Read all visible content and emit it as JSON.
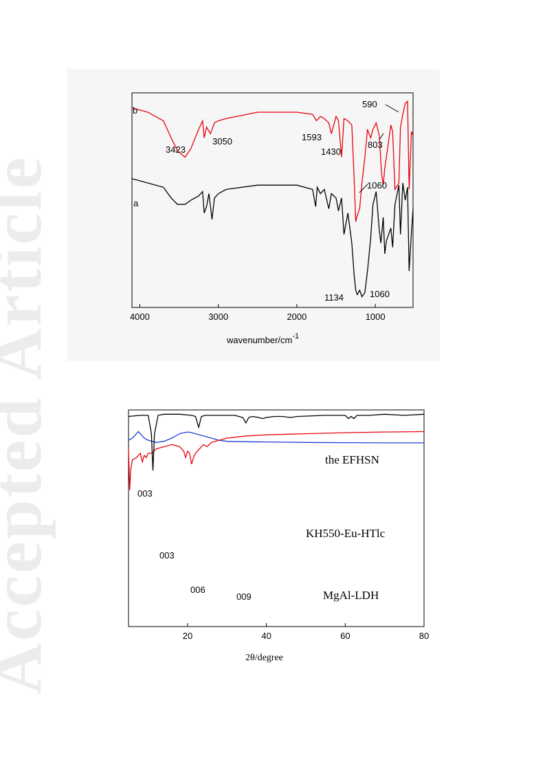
{
  "watermark": "Accepted Article",
  "colors": {
    "black": "#000000",
    "red": "#e8000b",
    "blue": "#1f3bd6"
  },
  "chart_data": [
    {
      "type": "line",
      "xlabel": "wavenumber/cm",
      "xlabel_sup": "-1",
      "xlim": [
        4100,
        520
      ],
      "x_ticks": [
        4000,
        3000,
        2000,
        1000
      ],
      "series": [
        {
          "name": "b",
          "color": "#e8000b",
          "x": [
            4100,
            3900,
            3700,
            3600,
            3520,
            3423,
            3350,
            3250,
            3200,
            3180,
            3150,
            3100,
            3050,
            3000,
            2900,
            2500,
            2000,
            1800,
            1750,
            1700,
            1650,
            1593,
            1560,
            1500,
            1470,
            1430,
            1400,
            1350,
            1300,
            1270,
            1250,
            1230,
            1200,
            1170,
            1134,
            1100,
            1060,
            1030,
            990,
            950,
            920,
            900,
            880,
            860,
            803,
            780,
            750,
            700,
            680,
            650,
            620,
            590,
            570,
            540,
            520
          ],
          "y": [
            0.93,
            0.91,
            0.87,
            0.79,
            0.73,
            0.7,
            0.74,
            0.83,
            0.87,
            0.79,
            0.84,
            0.81,
            0.86,
            0.87,
            0.88,
            0.91,
            0.91,
            0.9,
            0.87,
            0.89,
            0.88,
            0.86,
            0.81,
            0.89,
            0.87,
            0.7,
            0.88,
            0.87,
            0.85,
            0.6,
            0.4,
            0.43,
            0.46,
            0.58,
            0.7,
            0.83,
            0.79,
            0.83,
            0.86,
            0.8,
            0.62,
            0.57,
            0.65,
            0.7,
            0.85,
            0.82,
            0.55,
            0.58,
            0.84,
            0.9,
            0.95,
            0.96,
            0.55,
            0.82,
            0.8
          ]
        },
        {
          "name": "a",
          "color": "#000000",
          "x": [
            4100,
            3900,
            3700,
            3600,
            3520,
            3423,
            3350,
            3250,
            3200,
            3180,
            3150,
            3120,
            3080,
            3050,
            3000,
            2900,
            2500,
            2000,
            1800,
            1760,
            1740,
            1700,
            1650,
            1593,
            1560,
            1500,
            1470,
            1430,
            1400,
            1350,
            1300,
            1270,
            1250,
            1230,
            1200,
            1170,
            1134,
            1100,
            1060,
            1030,
            990,
            950,
            930,
            900,
            880,
            860,
            803,
            780,
            750,
            700,
            680,
            650,
            620,
            590,
            570,
            540,
            520
          ],
          "y": [
            0.6,
            0.58,
            0.56,
            0.51,
            0.48,
            0.48,
            0.5,
            0.52,
            0.54,
            0.44,
            0.47,
            0.53,
            0.41,
            0.51,
            0.53,
            0.55,
            0.57,
            0.57,
            0.55,
            0.47,
            0.56,
            0.53,
            0.55,
            0.46,
            0.53,
            0.51,
            0.45,
            0.51,
            0.34,
            0.44,
            0.3,
            0.15,
            0.08,
            0.06,
            0.08,
            0.05,
            0.07,
            0.17,
            0.32,
            0.48,
            0.54,
            0.36,
            0.3,
            0.42,
            0.25,
            0.31,
            0.37,
            0.28,
            0.48,
            0.57,
            0.34,
            0.58,
            0.5,
            0.56,
            0.17,
            0.35,
            0.46
          ]
        }
      ],
      "series_labels": [
        "b",
        "a"
      ],
      "annotations": [
        "590",
        "3423",
        "3050",
        "1593",
        "1430",
        "803",
        "1060",
        "1134",
        "1060"
      ]
    },
    {
      "type": "line",
      "xlabel": "2θ/degree",
      "xlim": [
        5,
        80
      ],
      "x_ticks": [
        20,
        40,
        60,
        80
      ],
      "series": [
        {
          "name": "the EFHSN",
          "color": "#1f3bd6",
          "x": [
            5,
            6,
            7,
            7.5,
            8,
            9,
            10,
            12,
            14,
            16,
            18,
            19,
            20,
            21,
            22,
            24,
            26,
            28,
            30,
            35,
            40,
            45,
            50,
            60,
            70,
            80
          ],
          "y": [
            0.86,
            0.87,
            0.89,
            0.9,
            0.89,
            0.87,
            0.86,
            0.85,
            0.855,
            0.87,
            0.89,
            0.895,
            0.898,
            0.895,
            0.89,
            0.88,
            0.87,
            0.86,
            0.855,
            0.853,
            0.852,
            0.851,
            0.85,
            0.849,
            0.848,
            0.848
          ]
        },
        {
          "name": "KH550-Eu-HTlc",
          "color": "#e8000b",
          "x": [
            5,
            5.3,
            5.6,
            6,
            7,
            8,
            8.5,
            9,
            9.5,
            10,
            11,
            12,
            14,
            16,
            18,
            19,
            19.5,
            20,
            20.5,
            21,
            21.5,
            22,
            23,
            24,
            25,
            26,
            28,
            30,
            35,
            40,
            50,
            60,
            70,
            80
          ],
          "y": [
            0.82,
            0.63,
            0.73,
            0.77,
            0.78,
            0.8,
            0.76,
            0.79,
            0.78,
            0.8,
            0.8,
            0.82,
            0.83,
            0.84,
            0.83,
            0.81,
            0.78,
            0.81,
            0.8,
            0.75,
            0.78,
            0.8,
            0.82,
            0.84,
            0.83,
            0.85,
            0.86,
            0.87,
            0.88,
            0.885,
            0.89,
            0.895,
            0.898,
            0.9
          ]
        },
        {
          "name": "MgAl-LDH",
          "color": "#000000",
          "x": [
            5,
            8,
            10,
            10.8,
            11.2,
            11.6,
            12.5,
            14,
            18,
            21,
            22,
            22.8,
            23.5,
            24.5,
            28,
            32,
            33,
            34,
            34.8,
            35.5,
            36.5,
            38,
            39,
            40,
            42,
            44,
            46,
            48,
            55,
            60,
            60.8,
            61.5,
            62.2,
            63,
            66,
            70,
            75,
            80
          ],
          "y": [
            0.97,
            0.975,
            0.975,
            0.89,
            0.72,
            0.89,
            0.975,
            0.98,
            0.98,
            0.975,
            0.97,
            0.92,
            0.97,
            0.975,
            0.975,
            0.975,
            0.97,
            0.965,
            0.94,
            0.965,
            0.97,
            0.965,
            0.96,
            0.965,
            0.97,
            0.97,
            0.965,
            0.97,
            0.975,
            0.975,
            0.96,
            0.97,
            0.96,
            0.975,
            0.975,
            0.98,
            0.975,
            0.98
          ]
        }
      ],
      "series_labels": [
        "the EFHSN",
        "KH550-Eu-HTlc",
        "MgAl-LDH"
      ],
      "annotations": [
        "003",
        "003",
        "006",
        "009"
      ]
    }
  ]
}
